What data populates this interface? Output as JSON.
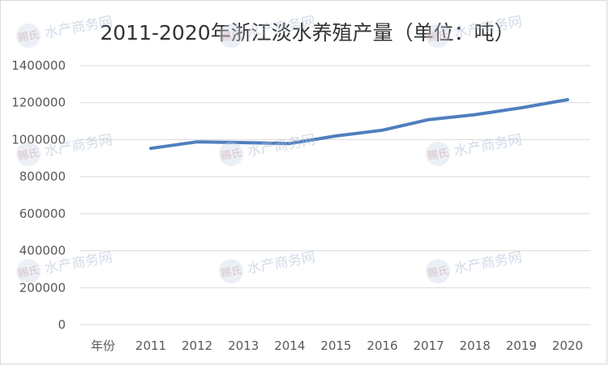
{
  "chart_data": {
    "type": "line",
    "title": "2011-2020年浙江淡水养殖产量（单位：吨）",
    "xlabel": "年份",
    "ylabel": "",
    "categories": [
      "2011",
      "2012",
      "2013",
      "2014",
      "2015",
      "2016",
      "2017",
      "2018",
      "2019",
      "2020"
    ],
    "series": [
      {
        "values": [
          953000,
          988000,
          984000,
          979000,
          1020000,
          1051000,
          1108000,
          1135000,
          1172000,
          1216000
        ],
        "color": "#4f7fbf"
      }
    ],
    "ylim": [
      0,
      1400000
    ],
    "yticks": [
      "0",
      "200000",
      "400000",
      "600000",
      "800000",
      "1000000",
      "1200000",
      "1400000"
    ],
    "grid": true,
    "legend": "none"
  },
  "watermark": {
    "text": "水产商务网",
    "logo": "赐氏"
  }
}
